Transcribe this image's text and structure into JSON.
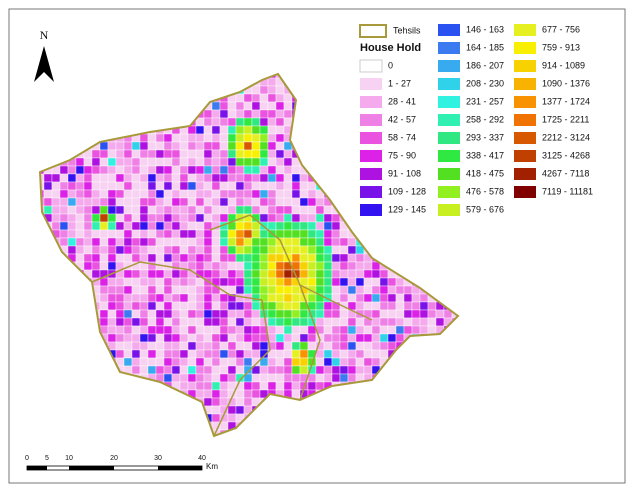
{
  "north": "N",
  "legend": {
    "boundary": "Tehsils",
    "title": "House Hold",
    "classes": [
      {
        "label": "0",
        "color": "#ffffff"
      },
      {
        "label": "1 - 27",
        "color": "#f8d2f2"
      },
      {
        "label": "28 - 41",
        "color": "#f4aaec"
      },
      {
        "label": "42 - 57",
        "color": "#ef80e6"
      },
      {
        "label": "58 - 74",
        "color": "#ea52e0"
      },
      {
        "label": "75 - 90",
        "color": "#dc22e6"
      },
      {
        "label": "91 - 108",
        "color": "#ae12e0"
      },
      {
        "label": "109 - 128",
        "color": "#7812e8"
      },
      {
        "label": "129 - 145",
        "color": "#3212f0"
      },
      {
        "label": "146 - 163",
        "color": "#2a52f0"
      },
      {
        "label": "164 - 185",
        "color": "#3c7af0"
      },
      {
        "label": "186 - 207",
        "color": "#38aaf0"
      },
      {
        "label": "208 - 230",
        "color": "#30d2ea"
      },
      {
        "label": "231 - 257",
        "color": "#30f2e0"
      },
      {
        "label": "258 - 292",
        "color": "#30f0b2"
      },
      {
        "label": "293 - 337",
        "color": "#30e882"
      },
      {
        "label": "338 - 417",
        "color": "#30e842"
      },
      {
        "label": "418 - 475",
        "color": "#52e020"
      },
      {
        "label": "476 - 578",
        "color": "#92f020"
      },
      {
        "label": "579 - 676",
        "color": "#c8f020"
      },
      {
        "label": "677 - 756",
        "color": "#e6f020"
      },
      {
        "label": "759 - 913",
        "color": "#f8f000"
      },
      {
        "label": "914 - 1089",
        "color": "#f8d200"
      },
      {
        "label": "1090 - 1376",
        "color": "#f8b200"
      },
      {
        "label": "1377 - 1724",
        "color": "#f89200"
      },
      {
        "label": "1725 - 2211",
        "color": "#f07200"
      },
      {
        "label": "2212 - 3124",
        "color": "#d85800"
      },
      {
        "label": "3125 - 4268",
        "color": "#c04000"
      },
      {
        "label": "4267 - 7118",
        "color": "#a02000"
      },
      {
        "label": "7119 - 11181",
        "color": "#800000"
      }
    ]
  },
  "scale_bar": {
    "ticks": [
      "0",
      "5",
      "10",
      "20",
      "30",
      "40"
    ],
    "unit": "Km"
  }
}
